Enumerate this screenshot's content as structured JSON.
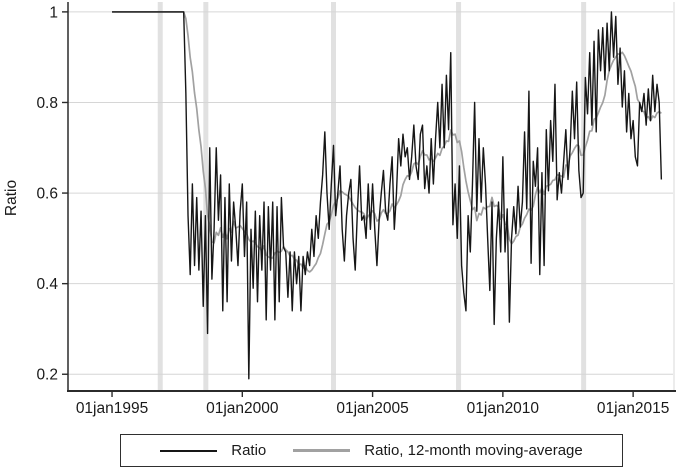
{
  "figure": {
    "background_color": "#ffffff",
    "y_axis": {
      "title": "Ratio",
      "tick_labels": [
        "0.2",
        "0.4",
        "0.6",
        "0.8",
        "1"
      ],
      "tick_values": [
        0.2,
        0.4,
        0.6,
        0.8,
        1
      ]
    },
    "x_axis": {
      "tick_labels": [
        "01jan1995",
        "01jan2000",
        "01jan2005",
        "01jan2010",
        "01jan2015"
      ],
      "tick_values": [
        1995,
        2000,
        2005,
        2010,
        2015
      ]
    },
    "legend": {
      "entries": [
        {
          "label": "Ratio",
          "color_key": "ratio_line"
        },
        {
          "label": "Ratio, 12-month moving-average",
          "color_key": "ma_line"
        }
      ]
    },
    "colors": {
      "ratio_line": "#161616",
      "ma_line": "#a1a1a1",
      "gridline": "#d6d6d6",
      "event_band": "#e1e1e1",
      "axis": "#2b2b2b",
      "text": "#1a1a1a",
      "right_border": "#d9d9d9"
    }
  },
  "chart_data": {
    "type": "line",
    "title": "",
    "xlabel": "",
    "ylabel": "Ratio",
    "x_start": "1995-01",
    "x_frequency": "monthly",
    "xlim_years": [
      1993.31,
      2016.53
    ],
    "ylim": [
      0.163,
      1.013
    ],
    "grid": "horizontal",
    "legend_position": "bottom-outside",
    "event_band_years": [
      1996.85,
      1998.6,
      2003.5,
      2008.3,
      2013.1
    ],
    "series": [
      {
        "name": "Ratio",
        "color_key": "ratio_line",
        "values": [
          1.0,
          1.0,
          1.0,
          1.0,
          1.0,
          1.0,
          1.0,
          1.0,
          1.0,
          1.0,
          1.0,
          1.0,
          1.0,
          1.0,
          1.0,
          1.0,
          1.0,
          1.0,
          1.0,
          1.0,
          1.0,
          1.0,
          1.0,
          1.0,
          1.0,
          1.0,
          1.0,
          1.0,
          1.0,
          1.0,
          1.0,
          1.0,
          1.0,
          1.0,
          0.82,
          0.55,
          0.42,
          0.62,
          0.44,
          0.59,
          0.43,
          0.56,
          0.35,
          0.55,
          0.29,
          0.7,
          0.41,
          0.52,
          0.7,
          0.54,
          0.64,
          0.34,
          0.59,
          0.36,
          0.62,
          0.45,
          0.58,
          0.52,
          0.44,
          0.56,
          0.62,
          0.46,
          0.58,
          0.19,
          0.52,
          0.39,
          0.56,
          0.36,
          0.55,
          0.43,
          0.58,
          0.32,
          0.57,
          0.43,
          0.58,
          0.32,
          0.57,
          0.36,
          0.59,
          0.48,
          0.47,
          0.37,
          0.47,
          0.34,
          0.47,
          0.4,
          0.46,
          0.34,
          0.46,
          0.42,
          0.47,
          0.44,
          0.52,
          0.46,
          0.55,
          0.5,
          0.58,
          0.64,
          0.735,
          0.6,
          0.52,
          0.62,
          0.705,
          0.55,
          0.6,
          0.66,
          0.52,
          0.45,
          0.55,
          0.6,
          0.63,
          0.5,
          0.43,
          0.56,
          0.66,
          0.54,
          0.55,
          0.5,
          0.62,
          0.52,
          0.62,
          0.52,
          0.44,
          0.54,
          0.6,
          0.65,
          0.56,
          0.54,
          0.62,
          0.68,
          0.52,
          0.6,
          0.72,
          0.66,
          0.73,
          0.68,
          0.7,
          0.63,
          0.68,
          0.75,
          0.66,
          0.63,
          0.73,
          0.75,
          0.61,
          0.66,
          0.6,
          0.72,
          0.62,
          0.72,
          0.8,
          0.7,
          0.84,
          0.7,
          0.86,
          0.74,
          0.91,
          0.53,
          0.62,
          0.5,
          0.66,
          0.44,
          0.38,
          0.34,
          0.55,
          0.47,
          0.62,
          0.8,
          0.56,
          0.72,
          0.58,
          0.7,
          0.62,
          0.5,
          0.385,
          0.58,
          0.31,
          0.5,
          0.58,
          0.47,
          0.68,
          0.47,
          0.565,
          0.315,
          0.5,
          0.57,
          0.51,
          0.615,
          0.525,
          0.58,
          0.735,
          0.565,
          0.825,
          0.445,
          0.67,
          0.615,
          0.7,
          0.42,
          0.645,
          0.44,
          0.74,
          0.605,
          0.76,
          0.67,
          0.84,
          0.585,
          0.645,
          0.6,
          0.67,
          0.74,
          0.63,
          0.7,
          0.825,
          0.72,
          0.845,
          0.65,
          0.59,
          0.6,
          0.855,
          0.775,
          0.91,
          0.75,
          0.935,
          0.735,
          0.96,
          0.87,
          0.965,
          0.85,
          0.975,
          0.87,
          1.0,
          0.9,
          0.99,
          0.84,
          0.92,
          0.79,
          0.87,
          0.735,
          0.82,
          0.72,
          0.76,
          0.68,
          0.66,
          0.8,
          0.78,
          0.82,
          0.75,
          0.83,
          0.76,
          0.86,
          0.78,
          0.84,
          0.8,
          0.63
        ]
      },
      {
        "name": "Ratio, 12-month moving-average",
        "color_key": "ma_line",
        "derived": "trailing 12-month moving average of the Ratio series"
      }
    ]
  }
}
